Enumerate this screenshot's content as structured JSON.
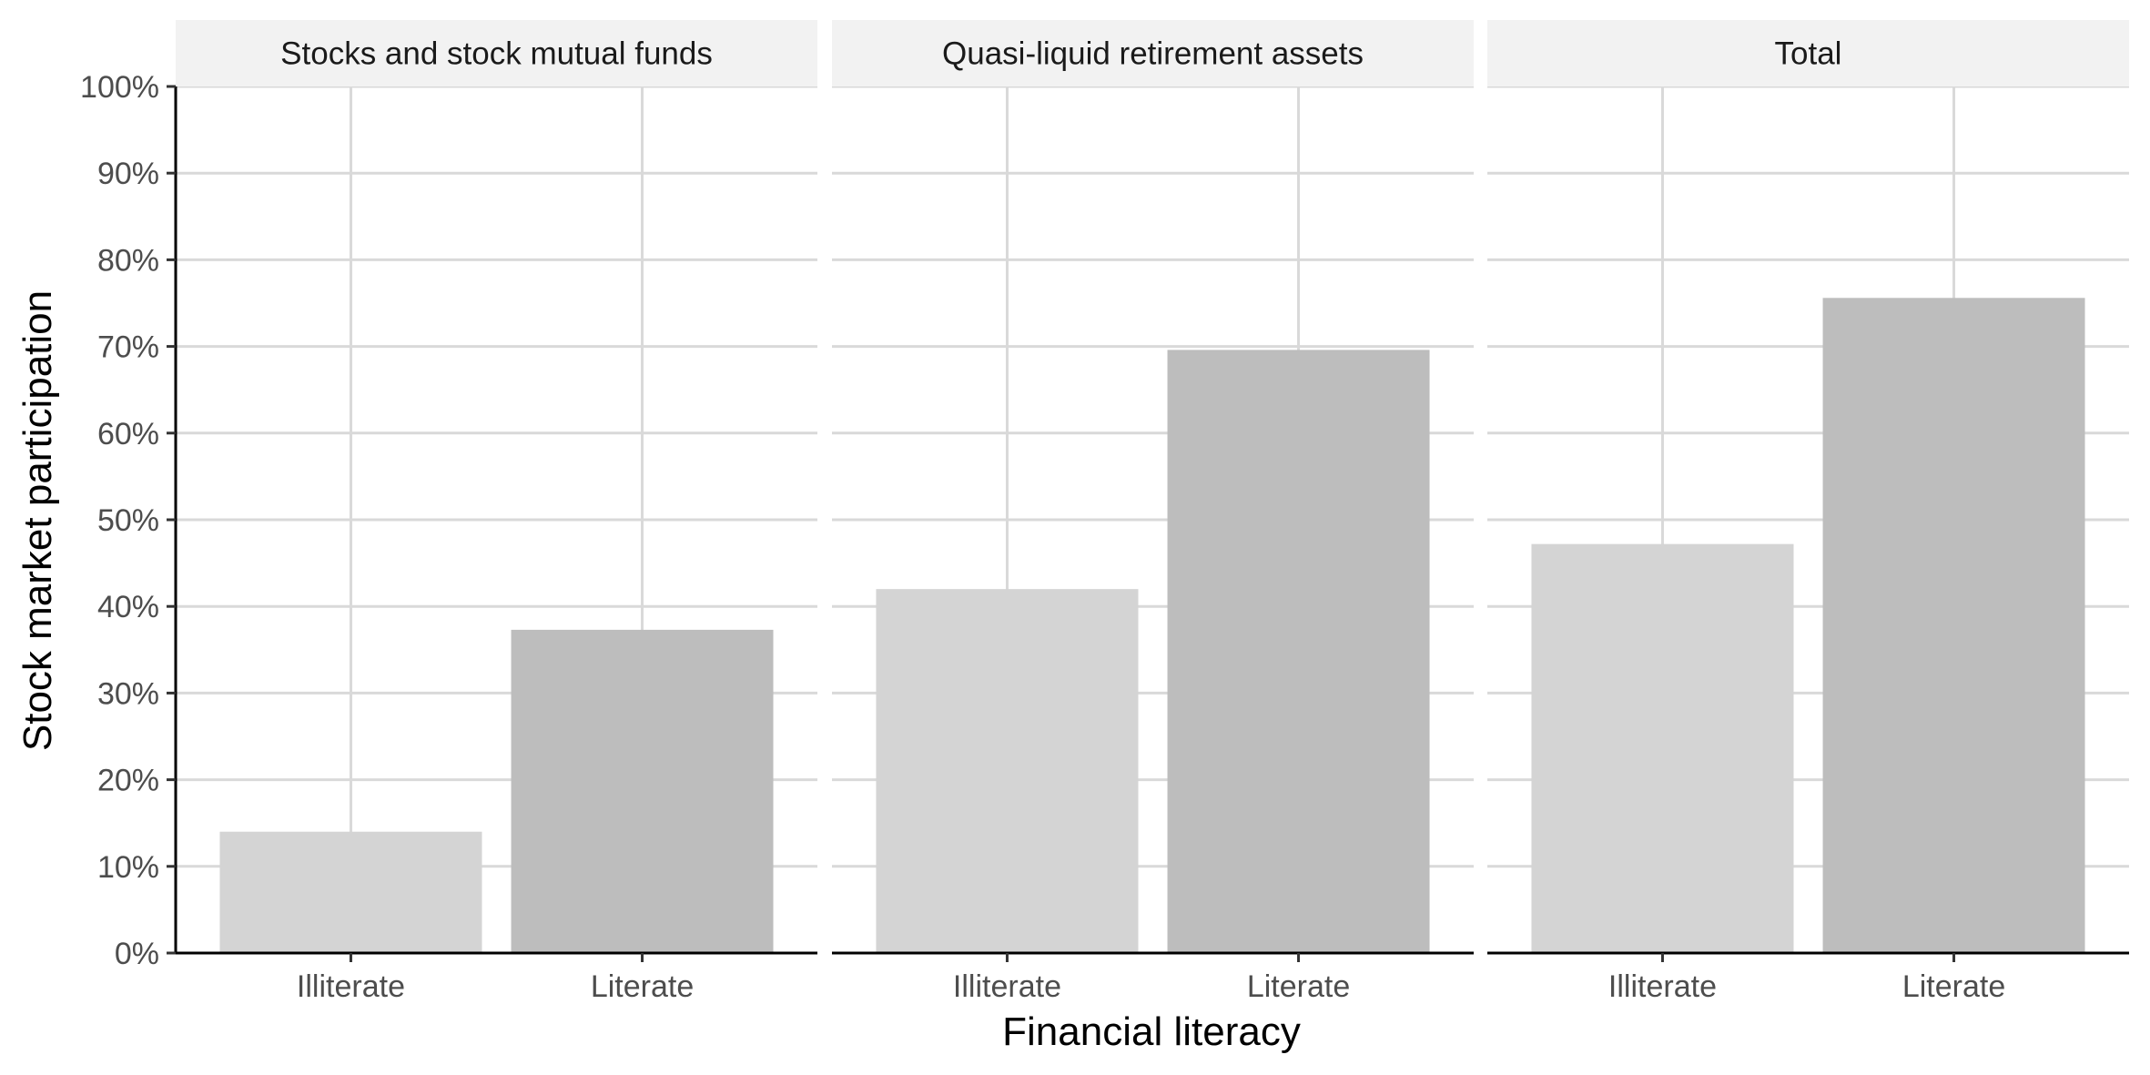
{
  "chart_data": {
    "type": "bar",
    "xlabel": "Financial literacy",
    "ylabel": "Stock market participation",
    "ylim": [
      0,
      1
    ],
    "y_ticks": [
      0,
      0.1,
      0.2,
      0.3,
      0.4,
      0.5,
      0.6,
      0.7,
      0.8,
      0.9,
      1.0
    ],
    "y_tick_labels": [
      "0%",
      "10%",
      "20%",
      "30%",
      "40%",
      "50%",
      "60%",
      "70%",
      "80%",
      "90%",
      "100%"
    ],
    "categories": [
      "Illiterate",
      "Literate"
    ],
    "grid": true,
    "legend": "none",
    "colors": {
      "Illiterate": "#d4d4d4",
      "Literate": "#bdbdbd",
      "grid": "#d9d9d9",
      "strip": "#f2f2f2",
      "axis": "#000000"
    },
    "facets": [
      {
        "title": "Stocks and stock mutual funds",
        "values": [
          0.14,
          0.373
        ]
      },
      {
        "title": "Quasi-liquid retirement assets",
        "values": [
          0.42,
          0.696
        ]
      },
      {
        "title": "Total",
        "values": [
          0.472,
          0.756
        ]
      }
    ]
  }
}
